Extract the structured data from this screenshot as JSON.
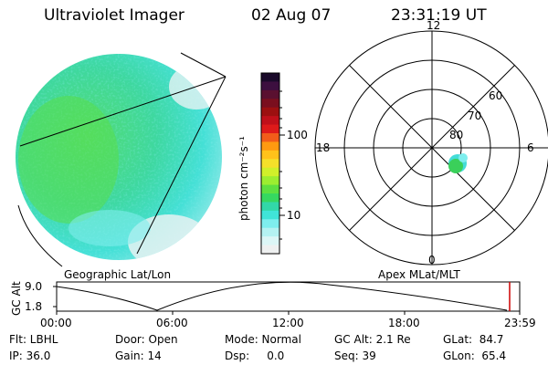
{
  "header": {
    "instrument": "Ultraviolet Imager",
    "date": "02 Aug 07",
    "time": "23:31:19 UT"
  },
  "colorbar": {
    "label": "photon cm⁻²s⁻¹",
    "ticks": [
      "100",
      "10"
    ],
    "colors": [
      "#1a0a2a",
      "#3c0f3f",
      "#5a1030",
      "#7a0f1e",
      "#9c1010",
      "#c0101a",
      "#de1a1a",
      "#f25c1a",
      "#ff9a10",
      "#ffc21a",
      "#f5e02a",
      "#d0f02a",
      "#9cee30",
      "#5ee040",
      "#36d860",
      "#32d8a8",
      "#40e4d8",
      "#7eeeee",
      "#b4f2f2",
      "#dcf6f6",
      "#eef0f0"
    ]
  },
  "left_panel": {
    "caption": "Geographic Lat/Lon"
  },
  "polar_plot": {
    "caption": "Apex MLat/MLT",
    "mlt_labels": {
      "top": "12",
      "left": "18",
      "right": "6",
      "bottom": "0"
    },
    "lat_labels": [
      "60",
      "70",
      "80"
    ]
  },
  "altitude_plot": {
    "ylabel": "GC Alt",
    "yticks": [
      "9.0",
      "1.8"
    ],
    "xticks": [
      "00:00",
      "06:00",
      "12:00",
      "18:00",
      "23:59"
    ],
    "marker_color": "#cc0000"
  },
  "info": {
    "flt": "Flt: LBHL",
    "ip": "IP: 36.0",
    "door": "Door: Open",
    "gain": "Gain: 14",
    "mode": "Mode: Normal",
    "dsp": "Dsp:     0.0",
    "gc_alt": "GC Alt: 2.1 Re",
    "seq": "Seq: 39",
    "glat": "GLat:  84.7",
    "glon": "GLon:  65.4"
  }
}
